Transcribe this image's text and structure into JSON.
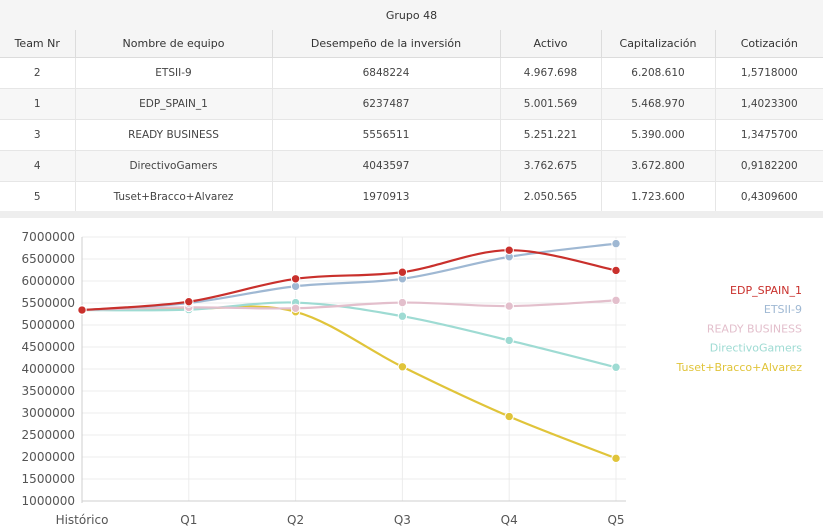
{
  "table": {
    "title": "Grupo 48",
    "headers": [
      "Team Nr",
      "Nombre de equipo",
      "Desempeño de la inversión",
      "Activo",
      "Capitalización",
      "Cotización"
    ],
    "rows": [
      [
        "2",
        "ETSII-9",
        "6848224",
        "4.967.698",
        "6.208.610",
        "1,5718000"
      ],
      [
        "1",
        "EDP_SPAIN_1",
        "6237487",
        "5.001.569",
        "5.468.970",
        "1,4023300"
      ],
      [
        "3",
        "READY BUSINESS",
        "5556511",
        "5.251.221",
        "5.390.000",
        "1,3475700"
      ],
      [
        "4",
        "DirectivoGamers",
        "4043597",
        "3.762.675",
        "3.672.800",
        "0,9182200"
      ],
      [
        "5",
        "Tuset+Bracco+Alvarez",
        "1970913",
        "2.050.565",
        "1.723.600",
        "0,4309600"
      ]
    ]
  },
  "chart_data": {
    "type": "line",
    "x": [
      "Histórico",
      "Q1",
      "Q2",
      "Q3",
      "Q4",
      "Q5"
    ],
    "ylim": [
      1000000,
      7000000
    ],
    "yticks": [
      "1000000",
      "1500000",
      "2000000",
      "2500000",
      "3000000",
      "3500000",
      "4000000",
      "4500000",
      "5000000",
      "5500000",
      "6000000",
      "6500000",
      "7000000"
    ],
    "grid": true,
    "legend_position": "right",
    "series": [
      {
        "name": "EDP_SPAIN_1",
        "color": "#c9302c",
        "values": [
          5340000,
          5530000,
          6050000,
          6200000,
          6700000,
          6240000
        ]
      },
      {
        "name": "ETSII-9",
        "color": "#9fb8d3",
        "values": [
          5340000,
          5500000,
          5880000,
          6050000,
          6550000,
          6850000
        ]
      },
      {
        "name": "READY BUSINESS",
        "color": "#e3bfcc",
        "values": [
          5340000,
          5400000,
          5380000,
          5510000,
          5430000,
          5560000
        ]
      },
      {
        "name": "DirectivoGamers",
        "color": "#9edbd3",
        "values": [
          5340000,
          5350000,
          5510000,
          5200000,
          4650000,
          4040000
        ]
      },
      {
        "name": "Tuset+Bracco+Alvarez",
        "color": "#e0c43a",
        "values": [
          5340000,
          5370000,
          5300000,
          4050000,
          2920000,
          1970000
        ]
      }
    ]
  }
}
